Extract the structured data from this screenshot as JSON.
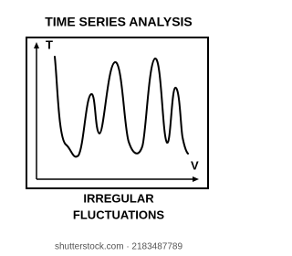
{
  "header": {
    "title": "TIME SERIES ANALYSIS"
  },
  "axes": {
    "y_label": "T",
    "x_label": "V"
  },
  "caption": {
    "lines": [
      "IRREGULAR",
      "FLUCTUATIONS"
    ]
  },
  "watermark": "shutterstock.com · 2183487789"
}
